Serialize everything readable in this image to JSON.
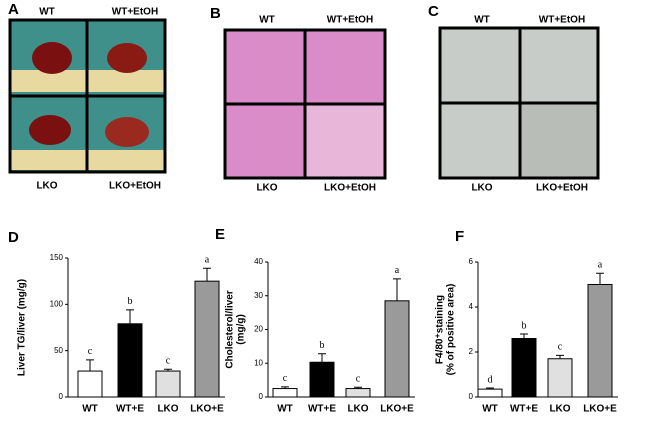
{
  "panels": [
    {
      "letter": "A",
      "labels": [
        "WT",
        "WT+EtOH",
        "LKO",
        "LKO+EtOH"
      ]
    },
    {
      "letter": "B",
      "labels": [
        "WT",
        "WT+EtOH",
        "LKO",
        "LKO+EtOH"
      ]
    },
    {
      "letter": "C",
      "labels": [
        "WT",
        "WT+EtOH",
        "LKO",
        "LKO+EtOH"
      ]
    }
  ],
  "chart_data": [
    {
      "type": "bar",
      "letter": "D",
      "ylabel": [
        "Liver TG/liver (mg/g)"
      ],
      "categories": [
        "WT",
        "WT+E",
        "LKO",
        "LKO+E"
      ],
      "values": [
        28,
        79,
        28,
        125
      ],
      "errors": [
        12,
        15,
        2,
        14
      ],
      "annotations": [
        "c",
        "b",
        "c",
        "a"
      ],
      "colors": [
        "#ffffff",
        "#000000",
        "#e0e0e0",
        "#9a9a9a"
      ],
      "ylim": [
        0,
        150
      ],
      "yticks": [
        0,
        50,
        100,
        150
      ]
    },
    {
      "type": "bar",
      "letter": "E",
      "ylabel": [
        "Cholesterol/liver",
        "(mg/g)"
      ],
      "categories": [
        "WT",
        "WT+E",
        "LKO",
        "LKO+E"
      ],
      "values": [
        2.5,
        10.3,
        2.5,
        28.5
      ],
      "errors": [
        0.5,
        2.5,
        0.4,
        6.5
      ],
      "annotations": [
        "c",
        "b",
        "c",
        "a"
      ],
      "colors": [
        "#ffffff",
        "#000000",
        "#e0e0e0",
        "#9a9a9a"
      ],
      "ylim": [
        0,
        40
      ],
      "yticks": [
        0,
        10,
        20,
        30,
        40
      ]
    },
    {
      "type": "bar",
      "letter": "F",
      "ylabel": [
        "F4/80⁺staining",
        "(% of positive area)"
      ],
      "categories": [
        "WT",
        "WT+E",
        "LKO",
        "LKO+E"
      ],
      "values": [
        0.35,
        2.6,
        1.7,
        5.0
      ],
      "errors": [
        0.05,
        0.2,
        0.15,
        0.5
      ],
      "annotations": [
        "d",
        "b",
        "c",
        "a"
      ],
      "colors": [
        "#ffffff",
        "#000000",
        "#e0e0e0",
        "#9a9a9a"
      ],
      "ylim": [
        0,
        6
      ],
      "yticks": [
        0,
        2,
        4,
        6
      ]
    }
  ]
}
